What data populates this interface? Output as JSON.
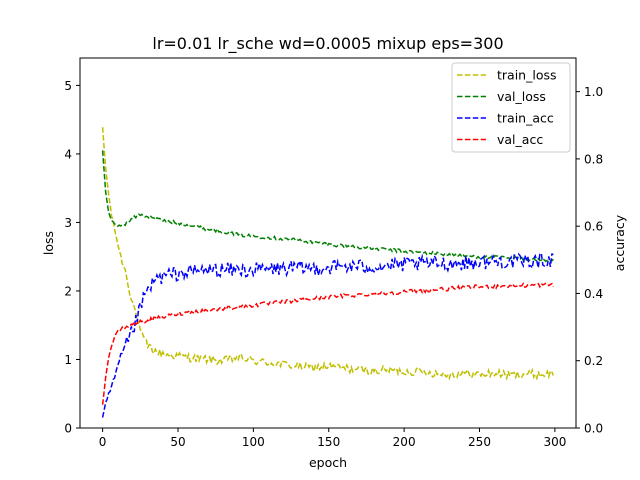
{
  "chart_data": {
    "type": "line",
    "title": "lr=0.01 lr_sche wd=0.0005 mixup eps=300",
    "xlabel": "epoch",
    "ylabel_left": "loss",
    "ylabel_right": "accuracy",
    "xlim": [
      -15,
      314
    ],
    "ylim_left": [
      0,
      5.4
    ],
    "ylim_right": [
      0,
      1.1
    ],
    "x_ticks": [
      0,
      50,
      100,
      150,
      200,
      250,
      300
    ],
    "y_ticks_left": [
      0,
      1,
      2,
      3,
      4,
      5
    ],
    "y_ticks_right": [
      0.0,
      0.2,
      0.4,
      0.6,
      0.8,
      1.0
    ],
    "legend_position": "upper-right",
    "series": [
      {
        "name": "train_loss",
        "axis": "left",
        "color": "#bfbf00",
        "style": "dashed",
        "x": [
          0,
          2,
          4,
          6,
          8,
          10,
          12,
          15,
          18,
          21,
          24,
          27,
          30,
          35,
          40,
          50,
          60,
          70,
          80,
          90,
          100,
          110,
          120,
          130,
          140,
          150,
          160,
          170,
          180,
          190,
          200,
          210,
          220,
          230,
          240,
          250,
          260,
          270,
          280,
          290,
          299
        ],
        "values": [
          4.38,
          3.8,
          3.4,
          3.1,
          2.9,
          2.7,
          2.5,
          2.3,
          2.0,
          1.75,
          1.5,
          1.3,
          1.2,
          1.12,
          1.08,
          1.05,
          1.02,
          1.0,
          0.98,
          1.03,
          0.98,
          0.95,
          0.93,
          0.9,
          0.88,
          0.9,
          0.87,
          0.85,
          0.83,
          0.85,
          0.82,
          0.83,
          0.8,
          0.78,
          0.8,
          0.78,
          0.8,
          0.77,
          0.79,
          0.78,
          0.8
        ],
        "noise": 0.06
      },
      {
        "name": "val_loss",
        "axis": "left",
        "color": "#008000",
        "style": "dashed",
        "x": [
          0,
          2,
          4,
          6,
          8,
          10,
          15,
          20,
          25,
          30,
          40,
          50,
          60,
          70,
          80,
          90,
          100,
          110,
          120,
          130,
          140,
          150,
          160,
          170,
          180,
          190,
          200,
          210,
          220,
          230,
          240,
          250,
          260,
          270,
          280,
          290,
          299
        ],
        "values": [
          4.05,
          3.45,
          3.15,
          3.02,
          2.97,
          2.95,
          2.98,
          3.06,
          3.12,
          3.08,
          3.03,
          2.99,
          2.95,
          2.9,
          2.87,
          2.82,
          2.8,
          2.78,
          2.76,
          2.74,
          2.71,
          2.68,
          2.66,
          2.64,
          2.62,
          2.6,
          2.58,
          2.56,
          2.55,
          2.53,
          2.51,
          2.5,
          2.49,
          2.48,
          2.47,
          2.45,
          2.45
        ],
        "noise": 0.025
      },
      {
        "name": "train_acc",
        "axis": "right",
        "color": "#0000ff",
        "style": "dashed",
        "x": [
          0,
          2,
          5,
          8,
          11,
          14,
          17,
          20,
          23,
          26,
          30,
          35,
          40,
          50,
          60,
          70,
          80,
          90,
          100,
          120,
          140,
          160,
          180,
          200,
          220,
          240,
          260,
          280,
          299
        ],
        "values": [
          0.03,
          0.07,
          0.11,
          0.15,
          0.19,
          0.23,
          0.26,
          0.29,
          0.33,
          0.37,
          0.41,
          0.44,
          0.45,
          0.46,
          0.465,
          0.47,
          0.47,
          0.47,
          0.47,
          0.475,
          0.475,
          0.48,
          0.48,
          0.485,
          0.49,
          0.49,
          0.495,
          0.495,
          0.5
        ],
        "noise": 0.022
      },
      {
        "name": "val_acc",
        "axis": "right",
        "color": "#ff0000",
        "style": "dashed",
        "x": [
          0,
          1,
          2,
          3,
          4,
          6,
          8,
          10,
          13,
          16,
          20,
          25,
          30,
          40,
          50,
          60,
          70,
          80,
          90,
          100,
          110,
          120,
          130,
          140,
          150,
          160,
          170,
          180,
          190,
          200,
          210,
          220,
          230,
          240,
          250,
          260,
          270,
          280,
          290,
          299
        ],
        "values": [
          0.07,
          0.11,
          0.15,
          0.18,
          0.21,
          0.245,
          0.27,
          0.285,
          0.295,
          0.3,
          0.31,
          0.315,
          0.32,
          0.33,
          0.34,
          0.345,
          0.35,
          0.355,
          0.36,
          0.365,
          0.37,
          0.375,
          0.38,
          0.385,
          0.39,
          0.393,
          0.396,
          0.399,
          0.402,
          0.405,
          0.408,
          0.411,
          0.414,
          0.417,
          0.42,
          0.421,
          0.423,
          0.424,
          0.425,
          0.426
        ],
        "noise": 0.006
      }
    ]
  }
}
